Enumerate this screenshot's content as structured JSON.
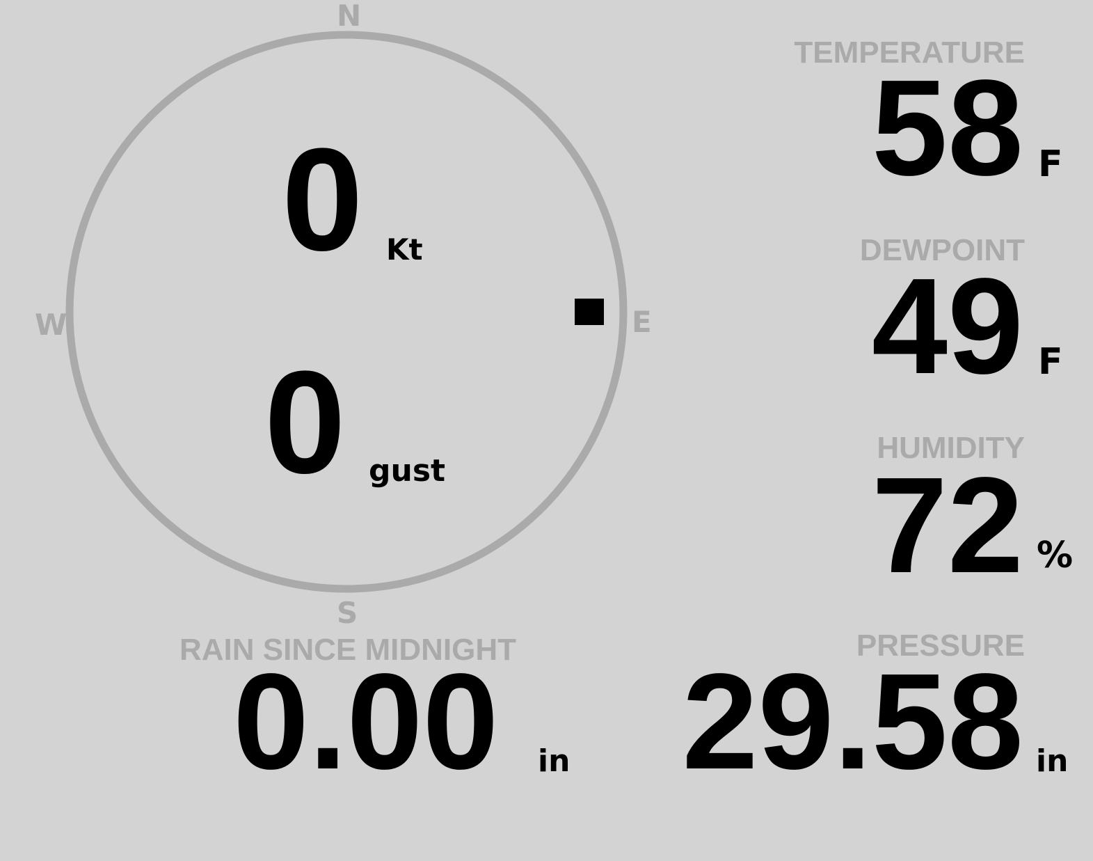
{
  "wind": {
    "compass": {
      "n": "N",
      "s": "S",
      "e": "E",
      "w": "W"
    },
    "direction_deg": 90,
    "speed": "0",
    "speed_unit": "Kt",
    "gust": "0",
    "gust_unit": "gust"
  },
  "rain": {
    "label": "RAIN SINCE MIDNIGHT",
    "value": "0.00",
    "unit": "in"
  },
  "temperature": {
    "label": "TEMPERATURE",
    "value": "58",
    "unit": "F"
  },
  "dewpoint": {
    "label": "DEWPOINT",
    "value": "49",
    "unit": "F"
  },
  "humidity": {
    "label": "HUMIDITY",
    "value": "72",
    "unit": "%"
  },
  "pressure": {
    "label": "PRESSURE",
    "value": "29.58",
    "unit": "in"
  },
  "colors": {
    "background": "#d3d3d3",
    "label": "#aaaaaa",
    "value": "#000000"
  }
}
